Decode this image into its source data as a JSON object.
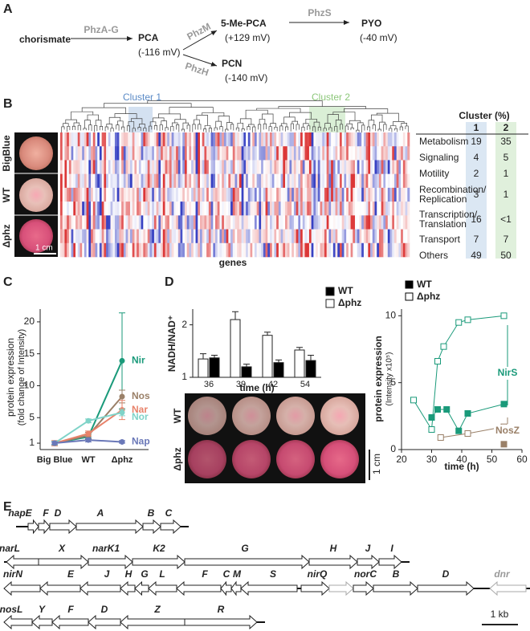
{
  "panel_labels": [
    "A",
    "B",
    "C",
    "D",
    "E"
  ],
  "pathway": {
    "nodes": [
      {
        "label": "chorismate"
      },
      {
        "label": "PCA",
        "note": "(-116 mV)"
      },
      {
        "label": "5-Me-PCA",
        "note": "(+129 mV)"
      },
      {
        "label": "PYO",
        "note": "(-40 mV)"
      },
      {
        "label": "PCN",
        "note": "(-140 mV)"
      }
    ],
    "edges": [
      {
        "label": "PhzA-G"
      },
      {
        "label": "PhzM"
      },
      {
        "label": "PhzS"
      },
      {
        "label": "PhzH"
      }
    ]
  },
  "heatmap": {
    "row_groups": [
      "BigBlue",
      "WT",
      "Δphz"
    ],
    "clusters": [
      "Cluster 1",
      "Cluster 2"
    ],
    "x_label": "genes",
    "scale": "1 cm"
  },
  "table": {
    "title": "Cluster (%)",
    "columns": [
      "1",
      "2"
    ],
    "rows": [
      {
        "label": [
          "Metabolism"
        ],
        "values": [
          19,
          35
        ]
      },
      {
        "label": [
          "Signaling"
        ],
        "values": [
          4,
          5
        ]
      },
      {
        "label": [
          "Motility"
        ],
        "values": [
          2,
          1
        ]
      },
      {
        "label": [
          "Recombination/",
          "Replication"
        ],
        "values": [
          3,
          1
        ]
      },
      {
        "label": [
          "Transcription/",
          "Translation"
        ],
        "values": [
          16,
          "<1"
        ]
      },
      {
        "label": [
          "Transport"
        ],
        "values": [
          7,
          7
        ]
      },
      {
        "label": [
          "Others"
        ],
        "values": [
          49,
          50
        ]
      }
    ]
  },
  "chart_data": [
    {
      "type": "line",
      "y_label": [
        "protein expression",
        "(fold change of Intensity)"
      ],
      "categories": [
        "Big Blue",
        "WT",
        "Δphz"
      ],
      "ylim": [
        0,
        22
      ],
      "yticks": [
        1,
        5,
        10,
        15,
        20
      ],
      "series": [
        {
          "name": "Nir",
          "color": "#1a9a7a",
          "values": [
            1,
            2,
            13.9
          ],
          "errors": [
            0.3,
            0.4,
            7.5
          ]
        },
        {
          "name": "Nos",
          "color": "#9a8068",
          "values": [
            1,
            2.2,
            8.3
          ],
          "errors": [
            0.4,
            0.5,
            1.0
          ]
        },
        {
          "name": "Nar",
          "color": "#e8826a",
          "values": [
            1,
            2.5,
            6.2
          ],
          "errors": [
            0.4,
            0.4,
            1.5
          ]
        },
        {
          "name": "Nor",
          "color": "#7fd3c8",
          "values": [
            1,
            4.5,
            5.8
          ],
          "errors": [
            0.3,
            0.3,
            0.5
          ]
        },
        {
          "name": "Nap",
          "color": "#6a78b8",
          "values": [
            1,
            1.5,
            1.2
          ],
          "errors": [
            0.2,
            0.3,
            0.2
          ]
        }
      ]
    },
    {
      "type": "bar",
      "y_label": "NADH/NAD⁺",
      "x_label": "time (h)",
      "categories": [
        "36",
        "39",
        "42",
        "54"
      ],
      "ylim": [
        1,
        2.3
      ],
      "yticks": [
        1,
        2
      ],
      "series": [
        {
          "name": "WT",
          "color": "#000000",
          "values": [
            1.37,
            1.2,
            1.28,
            1.32
          ],
          "errors": [
            0.05,
            0.05,
            0.05,
            0.1
          ]
        },
        {
          "name": "Δphz",
          "color": "#ffffff",
          "values": [
            1.35,
            2.1,
            1.8,
            1.52
          ],
          "errors": [
            0.1,
            0.15,
            0.06,
            0.05
          ]
        }
      ],
      "images": {
        "rows": [
          "WT",
          "Δphz"
        ],
        "scale": "1 cm"
      }
    },
    {
      "type": "scatter-line",
      "x_label": "time (h)",
      "y_label": [
        "protein expression",
        "(Intensity x10⁵)"
      ],
      "xlim": [
        20,
        60
      ],
      "xticks": [
        20,
        30,
        40,
        50,
        60
      ],
      "ylim": [
        0,
        10.5
      ],
      "yticks": [
        0,
        5,
        10
      ],
      "legend": [
        "WT",
        "Δphz"
      ],
      "markers": [
        "filled",
        "open"
      ],
      "proteins": [
        {
          "name": "NirS",
          "color": "#1a9a7a",
          "series": [
            {
              "x": [
                30,
                32,
                35,
                39,
                42,
                54
              ],
              "values": [
                2.4,
                3.0,
                3.0,
                1.4,
                2.7,
                3.4
              ]
            },
            {
              "x": [
                24,
                30,
                32,
                34,
                39,
                42,
                54
              ],
              "values": [
                3.7,
                1.5,
                6.6,
                7.7,
                9.5,
                9.7,
                10.0
              ]
            }
          ]
        },
        {
          "name": "NosZ",
          "color": "#9a8068",
          "series": [
            {
              "x": [
                54
              ],
              "values": [
                0.4
              ]
            },
            {
              "x": [
                33,
                42,
                54
              ],
              "values": [
                0.9,
                1.2,
                1.7
              ]
            }
          ]
        }
      ]
    }
  ],
  "operons": {
    "rows": [
      [
        "napE",
        "F",
        "D",
        "A",
        "B",
        "C"
      ],
      [
        "narL",
        "X",
        "narK1",
        "K2",
        "G",
        "H",
        "J",
        "I"
      ],
      [
        "nirN",
        "E",
        "J",
        "H",
        "G",
        "L",
        "F",
        "C",
        "M",
        "S",
        "nirQ",
        "norC",
        "B",
        "D",
        "dnr"
      ],
      [
        "nosL",
        "Y",
        "F",
        "D",
        "Z",
        "R"
      ]
    ],
    "scale": "1 kb"
  }
}
